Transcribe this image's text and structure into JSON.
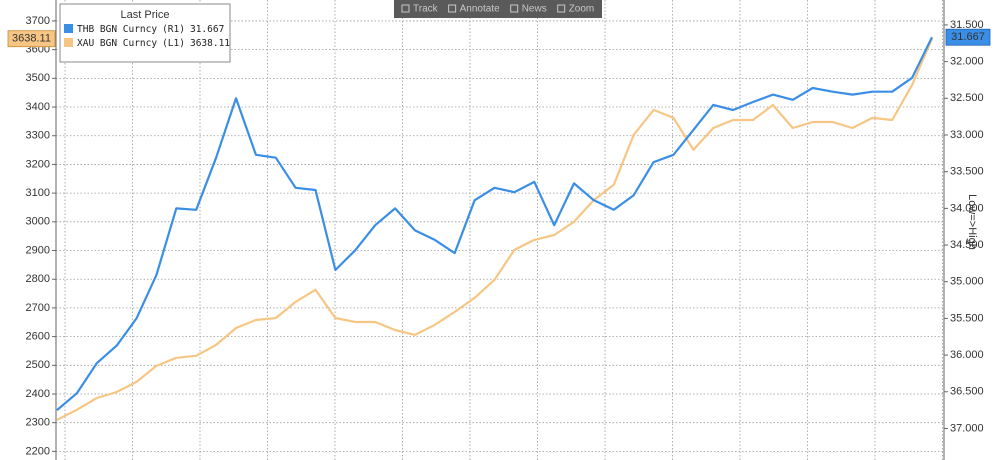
{
  "chart_data": {
    "type": "line",
    "legend_title": "Last Price",
    "toolbar": [
      "Track",
      "Annotate",
      "News",
      "Zoom"
    ],
    "y2_label": "Low=>High",
    "categories": [
      null,
      null,
      null,
      null,
      null,
      null,
      null,
      null,
      null,
      null,
      null,
      null,
      null,
      null,
      null,
      null,
      null,
      null,
      null,
      null,
      null,
      null,
      null,
      null,
      null,
      null,
      null,
      null,
      null,
      null,
      null,
      null,
      null,
      null,
      null,
      null,
      null,
      null,
      null,
      null,
      null,
      null,
      null,
      null,
      null
    ],
    "series": [
      {
        "name": "THB BGN Curncy",
        "axis_tag": "(R1)",
        "axis": "y2",
        "color": "#3a8ee6",
        "values": [
          36.75,
          36.52,
          36.11,
          35.87,
          35.5,
          34.91,
          34.0,
          34.02,
          33.31,
          32.5,
          33.27,
          33.31,
          33.72,
          33.75,
          34.84,
          34.57,
          34.23,
          34.0,
          34.3,
          34.43,
          34.61,
          33.89,
          33.72,
          33.78,
          33.64,
          34.23,
          33.66,
          33.89,
          34.02,
          33.82,
          33.37,
          33.27,
          32.93,
          32.59,
          32.66,
          32.55,
          32.45,
          32.52,
          32.36,
          32.41,
          32.45,
          32.41,
          32.41,
          32.22,
          31.667
        ]
      },
      {
        "name": "XAU BGN Curncy",
        "axis_tag": "(L1)",
        "axis": "y",
        "color": "#f7c684",
        "values": [
          2310,
          2345,
          2386,
          2407,
          2442,
          2498,
          2526,
          2533,
          2571,
          2630,
          2658,
          2665,
          2721,
          2763,
          2665,
          2651,
          2651,
          2623,
          2606,
          2641,
          2686,
          2735,
          2798,
          2902,
          2937,
          2954,
          3000,
          3076,
          3129,
          3303,
          3390,
          3362,
          3251,
          3327,
          3355,
          3355,
          3407,
          3327,
          3348,
          3348,
          3327,
          3362,
          3355,
          3477,
          3638.11
        ]
      }
    ],
    "ylim": [
      2170,
      3773
    ],
    "yticks": [
      2200,
      2300,
      2400,
      2500,
      2600,
      2700,
      2800,
      2900,
      3000,
      3100,
      3200,
      3300,
      3400,
      3500,
      3600,
      3700
    ],
    "y2lim": [
      31.16,
      37.43
    ],
    "y2_inverted": true,
    "y2ticks": [
      {
        "value": 31.5,
        "label": "31.500"
      },
      {
        "value": 32,
        "label": "32.000"
      },
      {
        "value": 32.5,
        "label": "32.500"
      },
      {
        "value": 33,
        "label": "33.000"
      },
      {
        "value": 33.5,
        "label": "33.500"
      },
      {
        "value": 34,
        "label": "34.000"
      },
      {
        "value": 34.5,
        "label": "34.500"
      },
      {
        "value": 35,
        "label": "35.000"
      },
      {
        "value": 35.5,
        "label": "35.500"
      },
      {
        "value": 36,
        "label": "36.000"
      },
      {
        "value": 36.5,
        "label": "36.500"
      },
      {
        "value": 37,
        "label": "37.000"
      }
    ],
    "grid": true
  }
}
